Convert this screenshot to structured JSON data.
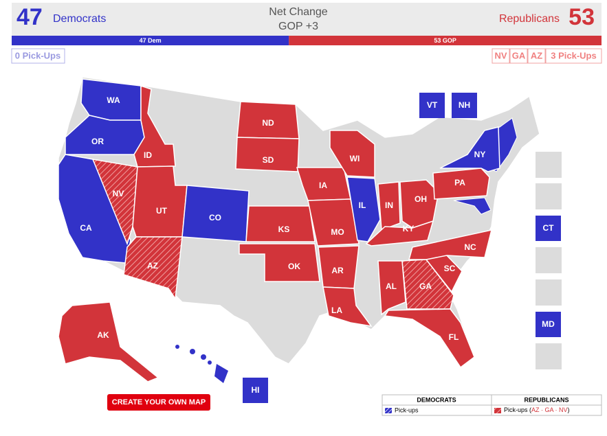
{
  "header": {
    "dem_count": 47,
    "dem_label": "Democrats",
    "net_label": "Net Change",
    "net_value": "GOP +3",
    "rep_label": "Republicans",
    "rep_count": 53
  },
  "bar": {
    "dem": "47 Dem",
    "rep": "53 GOP"
  },
  "pickups": {
    "dem": "0 Pick-Ups",
    "rep_states": [
      "NV",
      "GA",
      "AZ"
    ],
    "rep": "3 Pick-Ups"
  },
  "colors": {
    "dem": "#3232c8",
    "rep": "#d2343a",
    "gray": "#dcdcdc"
  },
  "states": [
    {
      "label": "WA",
      "party": "dem"
    },
    {
      "label": "OR",
      "party": "dem"
    },
    {
      "label": "CA",
      "party": "dem"
    },
    {
      "label": "NV",
      "party": "rep",
      "pickup": true
    },
    {
      "label": "ID",
      "party": "rep"
    },
    {
      "label": "UT",
      "party": "rep"
    },
    {
      "label": "AZ",
      "party": "rep",
      "pickup": true
    },
    {
      "label": "CO",
      "party": "dem"
    },
    {
      "label": "ND",
      "party": "rep"
    },
    {
      "label": "SD",
      "party": "rep"
    },
    {
      "label": "KS",
      "party": "rep"
    },
    {
      "label": "OK",
      "party": "rep"
    },
    {
      "label": "IA",
      "party": "rep"
    },
    {
      "label": "MO",
      "party": "rep"
    },
    {
      "label": "AR",
      "party": "rep"
    },
    {
      "label": "LA",
      "party": "rep"
    },
    {
      "label": "WI",
      "party": "rep"
    },
    {
      "label": "IL",
      "party": "dem"
    },
    {
      "label": "IN",
      "party": "rep"
    },
    {
      "label": "OH",
      "party": "rep"
    },
    {
      "label": "KY",
      "party": "rep"
    },
    {
      "label": "AL",
      "party": "rep"
    },
    {
      "label": "GA",
      "party": "rep",
      "pickup": true
    },
    {
      "label": "FL",
      "party": "rep"
    },
    {
      "label": "SC",
      "party": "rep"
    },
    {
      "label": "NC",
      "party": "rep"
    },
    {
      "label": "PA",
      "party": "rep"
    },
    {
      "label": "NY",
      "party": "dem"
    },
    {
      "label": "AK",
      "party": "rep"
    }
  ],
  "small_states": [
    {
      "label": "VT",
      "party": "dem"
    },
    {
      "label": "NH",
      "party": "dem"
    },
    {
      "label": "CT",
      "party": "dem"
    },
    {
      "label": "MD",
      "party": "dem"
    },
    {
      "label": "HI",
      "party": "dem"
    }
  ],
  "button": "CREATE YOUR OWN MAP",
  "legend": {
    "dem_title": "DEMOCRATS",
    "rep_title": "REPUBLICANS",
    "dem_note": "Pick-ups",
    "rep_note": "Pick-ups (",
    "rep_states": "AZ · GA · NV",
    "rep_close": ")"
  }
}
